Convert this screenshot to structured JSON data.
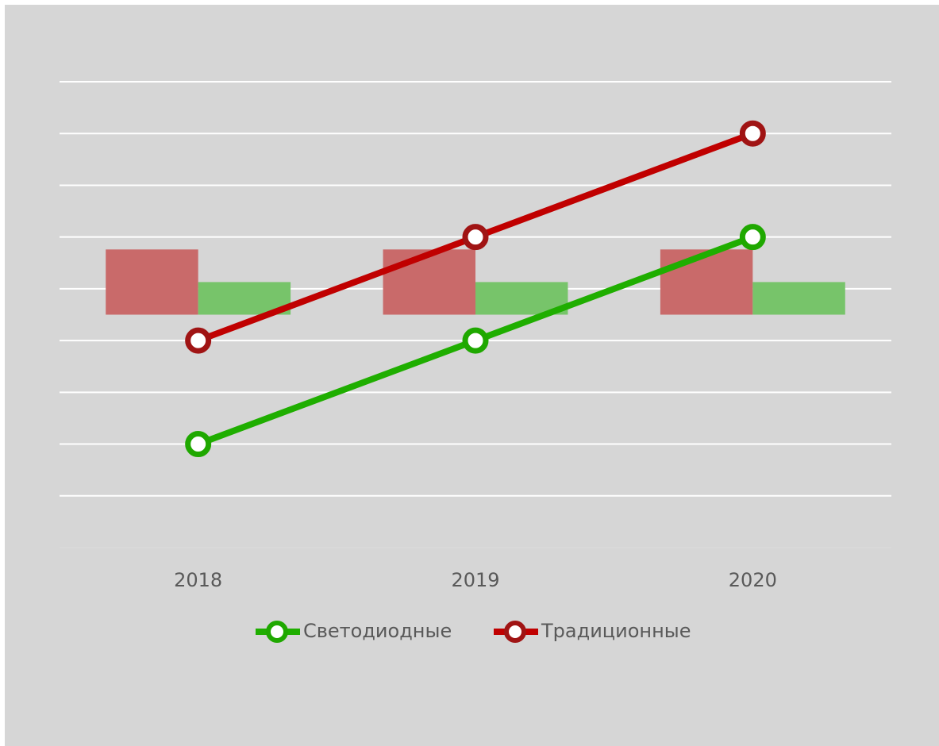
{
  "chart_data": {
    "type": "bar-line",
    "categories": [
      "2018",
      "2019",
      "2020"
    ],
    "ylim": [
      0,
      9
    ],
    "yticks": [
      1,
      2,
      3,
      4,
      5,
      6,
      7,
      8,
      9
    ],
    "tick_labels": false,
    "grid": true,
    "y2lim": [
      -1,
      1
    ],
    "bars": [
      {
        "color": "#c96a6a",
        "values": [
          0.28,
          0.28,
          0.28
        ],
        "axis": "y2"
      },
      {
        "color": "#77c46a",
        "values": [
          0.14,
          0.14,
          0.14
        ],
        "axis": "y2"
      }
    ],
    "series": [
      {
        "name": "Светодиодные",
        "color": "#1fae00",
        "marker_color": "#1fa800",
        "values": [
          2,
          4,
          6
        ]
      },
      {
        "name": "Традиционные",
        "color": "#c00000",
        "marker_color": "#a01414",
        "values": [
          4,
          6,
          8
        ]
      }
    ],
    "legend": "bottom"
  }
}
